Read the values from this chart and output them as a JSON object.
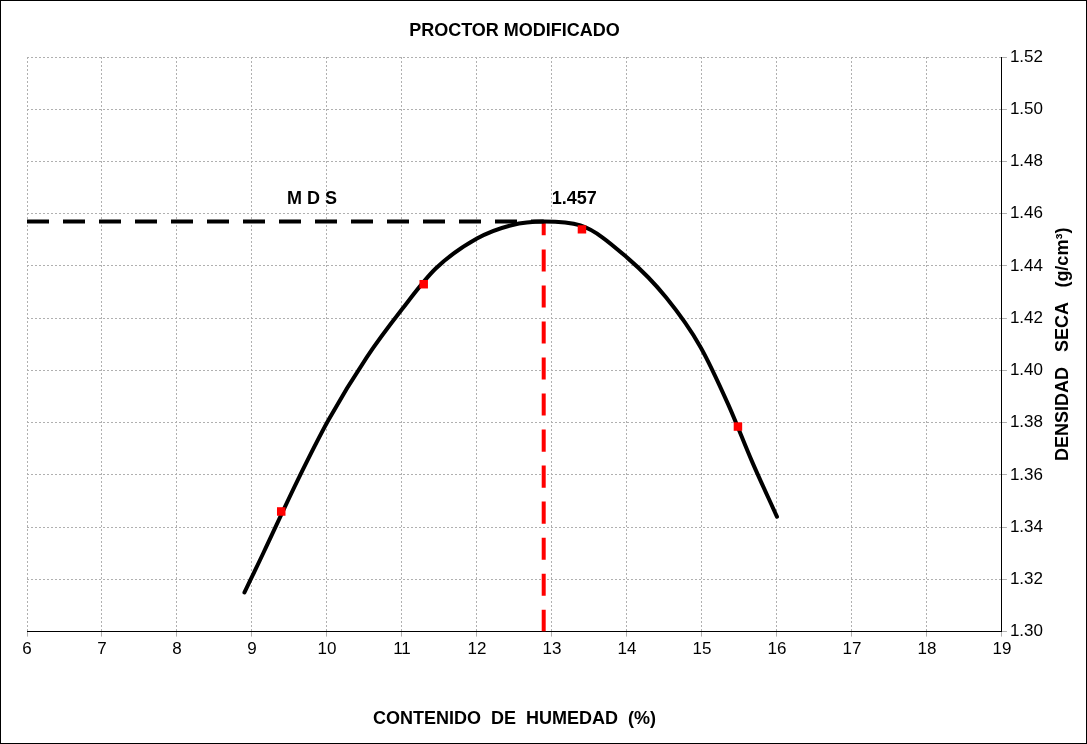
{
  "chart_data": {
    "type": "line",
    "title": "PROCTOR MODIFICADO",
    "xlabel": "CONTENIDO  DE  HUMEDAD  (%)",
    "ylabel": "DENSIDAD   SECA   (g/cm³)",
    "xlim": [
      6,
      19
    ],
    "xticks": [
      6,
      7,
      8,
      9,
      10,
      11,
      12,
      13,
      14,
      15,
      16,
      17,
      18,
      19
    ],
    "ylim": [
      1.3,
      1.52
    ],
    "yticks": [
      {
        "value": 1.3,
        "label": "1.30"
      },
      {
        "value": 1.32,
        "label": "1.32"
      },
      {
        "value": 1.34,
        "label": "1.34"
      },
      {
        "value": 1.36,
        "label": "1.36"
      },
      {
        "value": 1.38,
        "label": "1.38"
      },
      {
        "value": 1.4,
        "label": "1.40"
      },
      {
        "value": 1.42,
        "label": "1.42"
      },
      {
        "value": 1.44,
        "label": "1.44"
      },
      {
        "value": 1.46,
        "label": "1.46"
      },
      {
        "value": 1.48,
        "label": "1.48"
      },
      {
        "value": 1.5,
        "label": "1.50"
      },
      {
        "value": 1.52,
        "label": "1.52"
      }
    ],
    "grid": true,
    "legend": false,
    "series": [
      {
        "type": "line",
        "color": "#000000",
        "marker": "none",
        "line_style": "solid",
        "x": [
          8.9,
          9.15,
          9.61,
          10.02,
          10.53,
          10.99,
          11.45,
          12.0,
          12.46,
          12.89,
          13.38,
          14.01,
          14.52,
          14.98,
          15.35,
          15.67,
          16.0
        ],
        "values": [
          1.315,
          1.33,
          1.358,
          1.381,
          1.405,
          1.423,
          1.439,
          1.4505,
          1.4556,
          1.457,
          1.4555,
          1.443,
          1.428,
          1.409,
          1.387,
          1.365,
          1.344
        ]
      },
      {
        "type": "scatter",
        "color": "#ff0000",
        "marker": "square",
        "x": [
          9.39,
          11.29,
          13.4,
          15.48
        ],
        "values": [
          1.346,
          1.433,
          1.454,
          1.3785
        ]
      },
      {
        "type": "line",
        "color": "#000000",
        "marker": "none",
        "line_style": "dashed",
        "x": [
          6,
          12.89
        ],
        "values": [
          1.457,
          1.457
        ]
      },
      {
        "type": "line",
        "color": "#ff0000",
        "marker": "none",
        "line_style": "dashed",
        "x": [
          12.89,
          12.89
        ],
        "values": [
          1.3,
          1.457
        ]
      }
    ],
    "annotations": [
      {
        "text": "M D S",
        "x": 9.8,
        "y": 1.457
      },
      {
        "text": "1.457",
        "x": 12.89,
        "y": 1.457
      }
    ]
  }
}
